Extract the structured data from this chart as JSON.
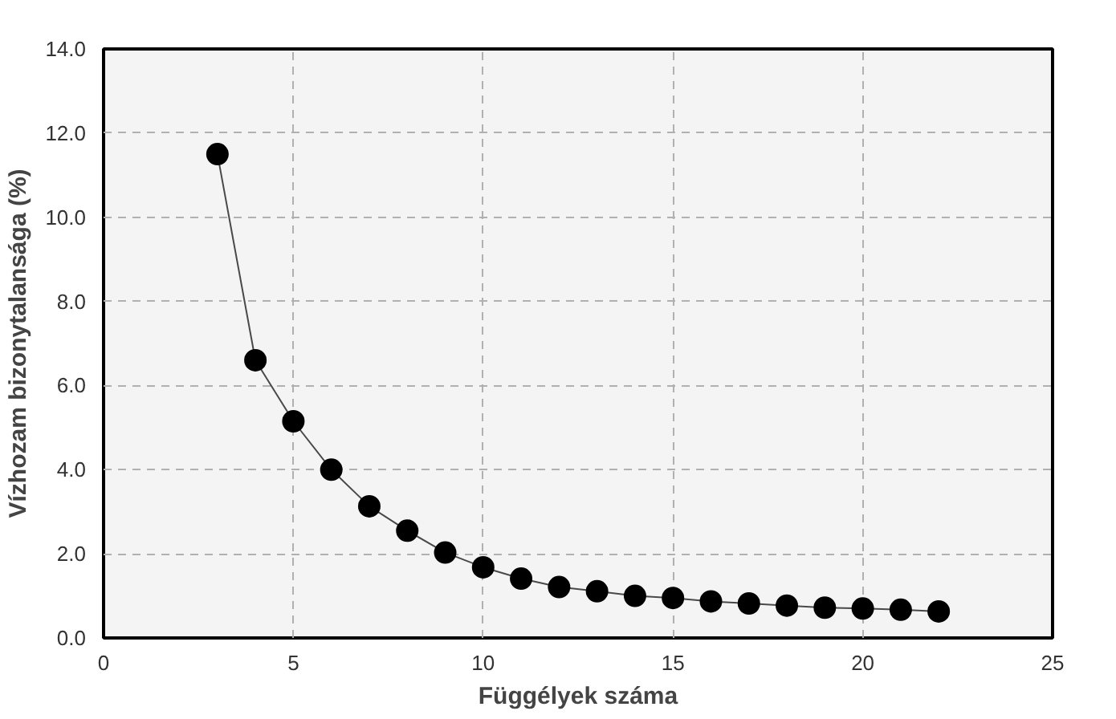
{
  "chart_data": {
    "type": "line",
    "xlabel": "Függélyek száma",
    "ylabel": "Vízhozam bizonytalansága (%)",
    "x": [
      3,
      4,
      5,
      6,
      7,
      8,
      9,
      10,
      11,
      12,
      13,
      14,
      15,
      16,
      17,
      18,
      19,
      20,
      21,
      22
    ],
    "series": [
      {
        "color": "#000000",
        "values": [
          11.5,
          6.6,
          5.15,
          4.0,
          3.13,
          2.55,
          2.03,
          1.68,
          1.41,
          1.21,
          1.11,
          1.0,
          0.95,
          0.87,
          0.82,
          0.77,
          0.72,
          0.7,
          0.67,
          0.63
        ]
      }
    ],
    "xlim": [
      0,
      25
    ],
    "xticks": [
      0,
      5,
      10,
      15,
      20,
      25
    ],
    "ylim": [
      0,
      14
    ],
    "yticks": [
      {
        "value": 0,
        "label": "0.0"
      },
      {
        "value": 2,
        "label": "2.0"
      },
      {
        "value": 4,
        "label": "4.0"
      },
      {
        "value": 6,
        "label": "6.0"
      },
      {
        "value": 8,
        "label": "8.0"
      },
      {
        "value": 10,
        "label": "10.0"
      },
      {
        "value": 12,
        "label": "12.0"
      },
      {
        "value": 14,
        "label": "14.0"
      }
    ],
    "grid": true,
    "marker": "circle",
    "line_style": "solid"
  }
}
